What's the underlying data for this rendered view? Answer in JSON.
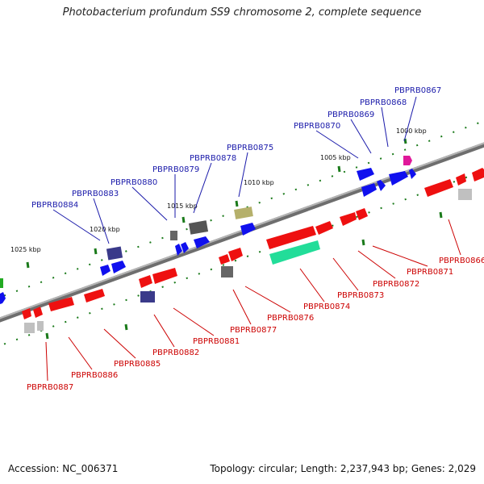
{
  "header": {
    "title": "Photobacterium profundum SS9 chromosome 2, complete sequence"
  },
  "footer": {
    "accession": "Accession: NC_006371",
    "summary": "Topology: circular; Length: 2,237,943 bp; Genes: 2,029"
  },
  "scale_ticks": [
    "1000 kbp",
    "1005 kbp",
    "1010 kbp",
    "1015 kbp",
    "1020 kbp",
    "1025 kbp"
  ],
  "top_labels": [
    "PBPRB0867",
    "PBPRB0868",
    "PBPRB0869",
    "PBPRB0870",
    "PBPRB0875",
    "PBPRB0878",
    "PBPRB0879",
    "PBPRB0880",
    "PBPRB0883",
    "PBPRB0884"
  ],
  "bottom_labels": [
    "PBPRB0866",
    "PBPRB0871",
    "PBPRB0872",
    "PBPRB0873",
    "PBPRB0874",
    "PBPRB0876",
    "PBPRB0877",
    "PBPRB0881",
    "PBPRB0882",
    "PBPRB0885",
    "PBPRB0886",
    "PBPRB0887"
  ],
  "colors": {
    "top_label": "#1a1aaa",
    "bottom_label": "#cc0000",
    "forward_gene": "#1010ee",
    "reverse_gene": "#ee1010",
    "backbone": "#8a8a8a",
    "tick": "#1a7a1a"
  }
}
